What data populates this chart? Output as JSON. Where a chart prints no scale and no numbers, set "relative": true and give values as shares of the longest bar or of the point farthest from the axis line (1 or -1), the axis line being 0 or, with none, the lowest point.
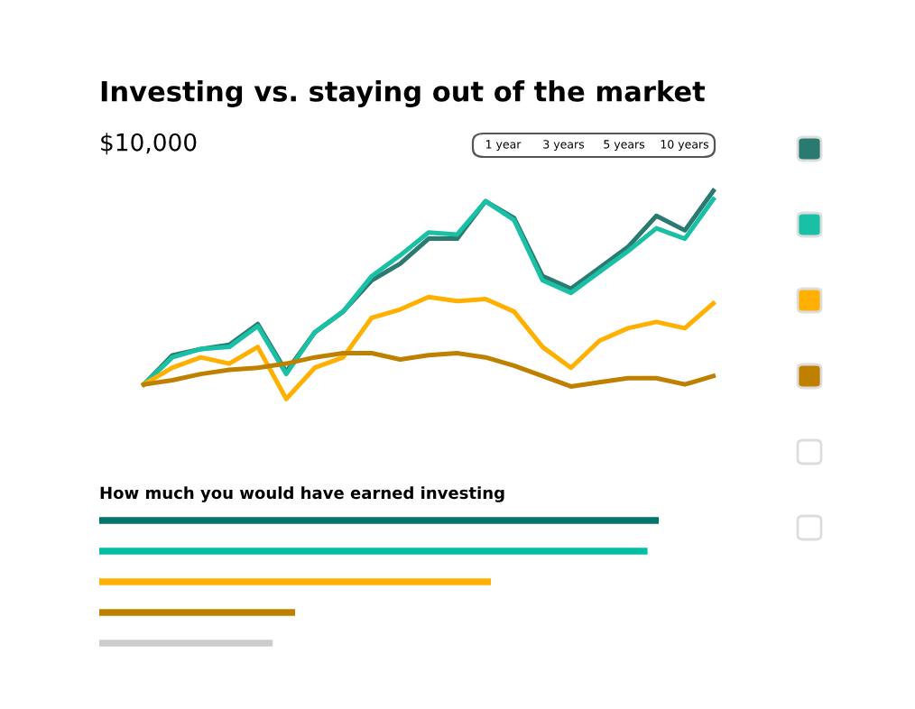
{
  "chart_data": [
    {
      "type": "line",
      "title": "Investing vs. staying out of the market",
      "subtitle": "$10,000",
      "relative": true,
      "annotations": [
        "1 year",
        "3 years",
        "5 years",
        "10 years"
      ],
      "categories": [
        null,
        null,
        null,
        null,
        null,
        null,
        null,
        null,
        null,
        null,
        null,
        null,
        null,
        null,
        null,
        null,
        null,
        null,
        null,
        null,
        null
      ],
      "series": [
        {
          "color": "#2b7a6f",
          "values": [
            0.07,
            0.21,
            0.24,
            0.26,
            0.36,
            0.13,
            0.32,
            0.42,
            0.57,
            0.65,
            0.77,
            0.77,
            0.95,
            0.87,
            0.59,
            0.53,
            0.63,
            0.73,
            0.88,
            0.81,
            1
          ]
        },
        {
          "color": "#19c0a6",
          "values": [
            0.07,
            0.2,
            0.24,
            0.25,
            0.35,
            0.12,
            0.32,
            0.42,
            0.59,
            0.69,
            0.8,
            0.79,
            0.95,
            0.86,
            0.57,
            0.51,
            0.61,
            0.71,
            0.82,
            0.77,
            0.96
          ]
        },
        {
          "color": "#ffb000",
          "values": [
            0.07,
            0.15,
            0.2,
            0.17,
            0.25,
            0,
            0.15,
            0.2,
            0.39,
            0.43,
            0.49,
            0.47,
            0.48,
            0.42,
            0.25,
            0.15,
            0.28,
            0.34,
            0.37,
            0.34,
            0.46
          ]
        },
        {
          "color": "#bf8000",
          "values": [
            0.07,
            0.09,
            0.12,
            0.14,
            0.15,
            0.17,
            0.2,
            0.22,
            0.22,
            0.19,
            0.21,
            0.22,
            0.2,
            0.16,
            0.11,
            0.06,
            0.08,
            0.1,
            0.1,
            0.07,
            0.11
          ]
        }
      ]
    },
    {
      "type": "bar",
      "orientation": "horizontal",
      "relative": true,
      "title": "How much you would have earned investing",
      "categories": [
        null,
        null,
        null,
        null,
        null
      ],
      "values": [
        1,
        0.98,
        0.7,
        0.35,
        0.31
      ],
      "colors": [
        "#00756b",
        "#00bfa5",
        "#ffb000",
        "#bf8000",
        "#cccccc"
      ]
    }
  ]
}
